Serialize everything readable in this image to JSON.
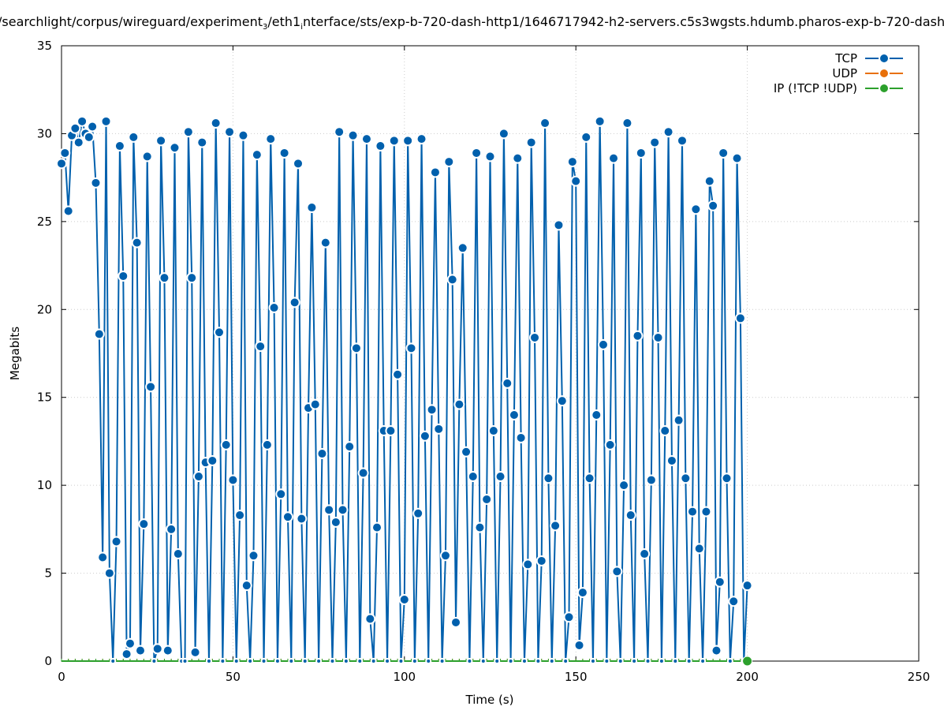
{
  "chart_data": {
    "type": "line",
    "title_parts": [
      "/searchlight/corpus/wireguard/experiment",
      "3",
      "/eth1",
      "i",
      "nterface/sts/exp-b-720-dash-http1/1646717942-h2-servers.c5s3wgsts.hdumb.pharos-exp-b-720-dash"
    ],
    "xlabel": "Time (s)",
    "ylabel": "Megabits",
    "xlim": [
      0,
      250
    ],
    "ylim": [
      0,
      35
    ],
    "xticks": [
      "0",
      "50",
      "100",
      "150",
      "200",
      "250"
    ],
    "yticks": [
      "0",
      "5",
      "10",
      "15",
      "20",
      "25",
      "30",
      "35"
    ],
    "grid": true,
    "legend_position": "top-right",
    "x_range": [
      0,
      200
    ],
    "series": [
      {
        "name": "TCP",
        "color": "#0060ad",
        "values": [
          28.3,
          28.9,
          25.6,
          29.9,
          30.3,
          29.5,
          30.7,
          30.0,
          29.8,
          30.4,
          27.2,
          18.6,
          5.9,
          30.7,
          5.0,
          0,
          6.8,
          29.3,
          21.9,
          0.4,
          1.0,
          29.8,
          23.8,
          0.6,
          7.8,
          28.7,
          15.6,
          0,
          0.7,
          29.6,
          21.8,
          0.6,
          7.5,
          29.2,
          6.1,
          0,
          0,
          30.1,
          21.8,
          0.5,
          10.5,
          29.5,
          11.3,
          0,
          11.4,
          30.6,
          18.7,
          0,
          12.3,
          30.1,
          10.3,
          0,
          8.3,
          29.9,
          4.3,
          0,
          6.0,
          28.8,
          17.9,
          0,
          12.3,
          29.7,
          20.1,
          0,
          9.5,
          28.9,
          8.2,
          0,
          20.4,
          28.3,
          8.1,
          0,
          14.4,
          25.8,
          14.6,
          0,
          11.8,
          23.8,
          8.6,
          0,
          7.9,
          30.1,
          8.6,
          0,
          12.2,
          29.9,
          17.8,
          0,
          10.7,
          29.7,
          2.4,
          0,
          7.6,
          29.3,
          13.1,
          0,
          13.1,
          29.6,
          16.3,
          0,
          3.5,
          29.6,
          17.8,
          0,
          8.4,
          29.7,
          12.8,
          0,
          14.3,
          27.8,
          13.2,
          0,
          6.0,
          28.4,
          21.7,
          2.2,
          14.6,
          23.5,
          11.9,
          0,
          10.5,
          28.9,
          7.6,
          0,
          9.2,
          28.7,
          13.1,
          0,
          10.5,
          30.0,
          15.8,
          0,
          14.0,
          28.6,
          12.7,
          0,
          5.5,
          29.5,
          18.4,
          0,
          5.7,
          30.6,
          10.4,
          0,
          7.7,
          24.8,
          14.8,
          0,
          2.5,
          28.4,
          27.3,
          0.9,
          3.9,
          29.8,
          10.4,
          0,
          14.0,
          30.7,
          18.0,
          0,
          12.3,
          28.6,
          5.1,
          0,
          10.0,
          30.6,
          8.3,
          0,
          18.5,
          28.9,
          6.1,
          0,
          10.3,
          29.5,
          18.4,
          0,
          13.1,
          30.1,
          11.4,
          0,
          13.7,
          29.6,
          10.4,
          0,
          8.5,
          25.7,
          6.4,
          0,
          8.5,
          27.3,
          25.9,
          0.6,
          4.5,
          28.9,
          10.4,
          0,
          3.4,
          28.6,
          19.5,
          0,
          4.3
        ]
      },
      {
        "name": "UDP",
        "color": "#e8700a",
        "constant_value": 0
      },
      {
        "name": "IP (!TCP  !UDP)",
        "color": "#2ca02c",
        "constant_value": 0
      }
    ]
  }
}
